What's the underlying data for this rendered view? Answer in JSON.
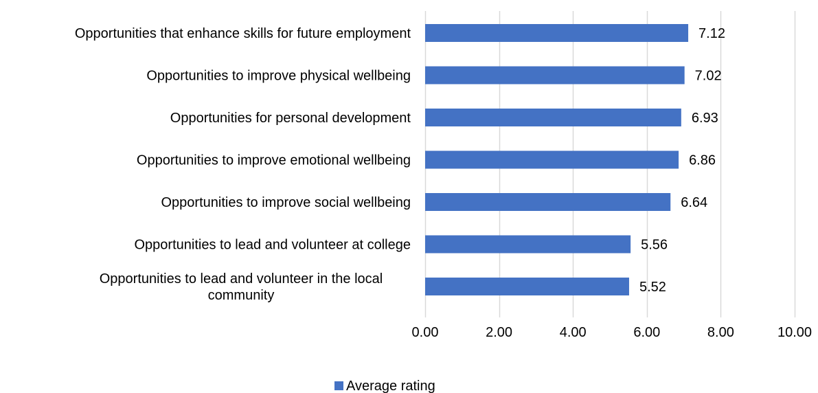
{
  "chart_data": {
    "type": "bar",
    "orientation": "horizontal",
    "categories": [
      "Opportunities that enhance skills for future employment",
      "Opportunities to improve physical wellbeing",
      "Opportunities for personal development",
      "Opportunities to improve emotional wellbeing",
      "Opportunities to improve social wellbeing",
      "Opportunities to lead and volunteer at college",
      "Opportunities to lead and volunteer in the local community"
    ],
    "series": [
      {
        "name": "Average rating",
        "values": [
          7.12,
          7.02,
          6.93,
          6.86,
          6.64,
          5.56,
          5.52
        ],
        "value_labels": [
          "7.12",
          "7.02",
          "6.93",
          "6.86",
          "6.64",
          "5.56",
          "5.52"
        ],
        "color": "#4472C4"
      }
    ],
    "xlim": [
      0,
      10
    ],
    "x_ticks": [
      0,
      2,
      4,
      6,
      8,
      10
    ],
    "x_tick_labels": [
      "0.00",
      "2.00",
      "4.00",
      "6.00",
      "8.00",
      "10.00"
    ],
    "grid": true,
    "grid_color": "#D9D9D9",
    "legend_position": "bottom",
    "title": "",
    "xlabel": "",
    "ylabel": ""
  }
}
